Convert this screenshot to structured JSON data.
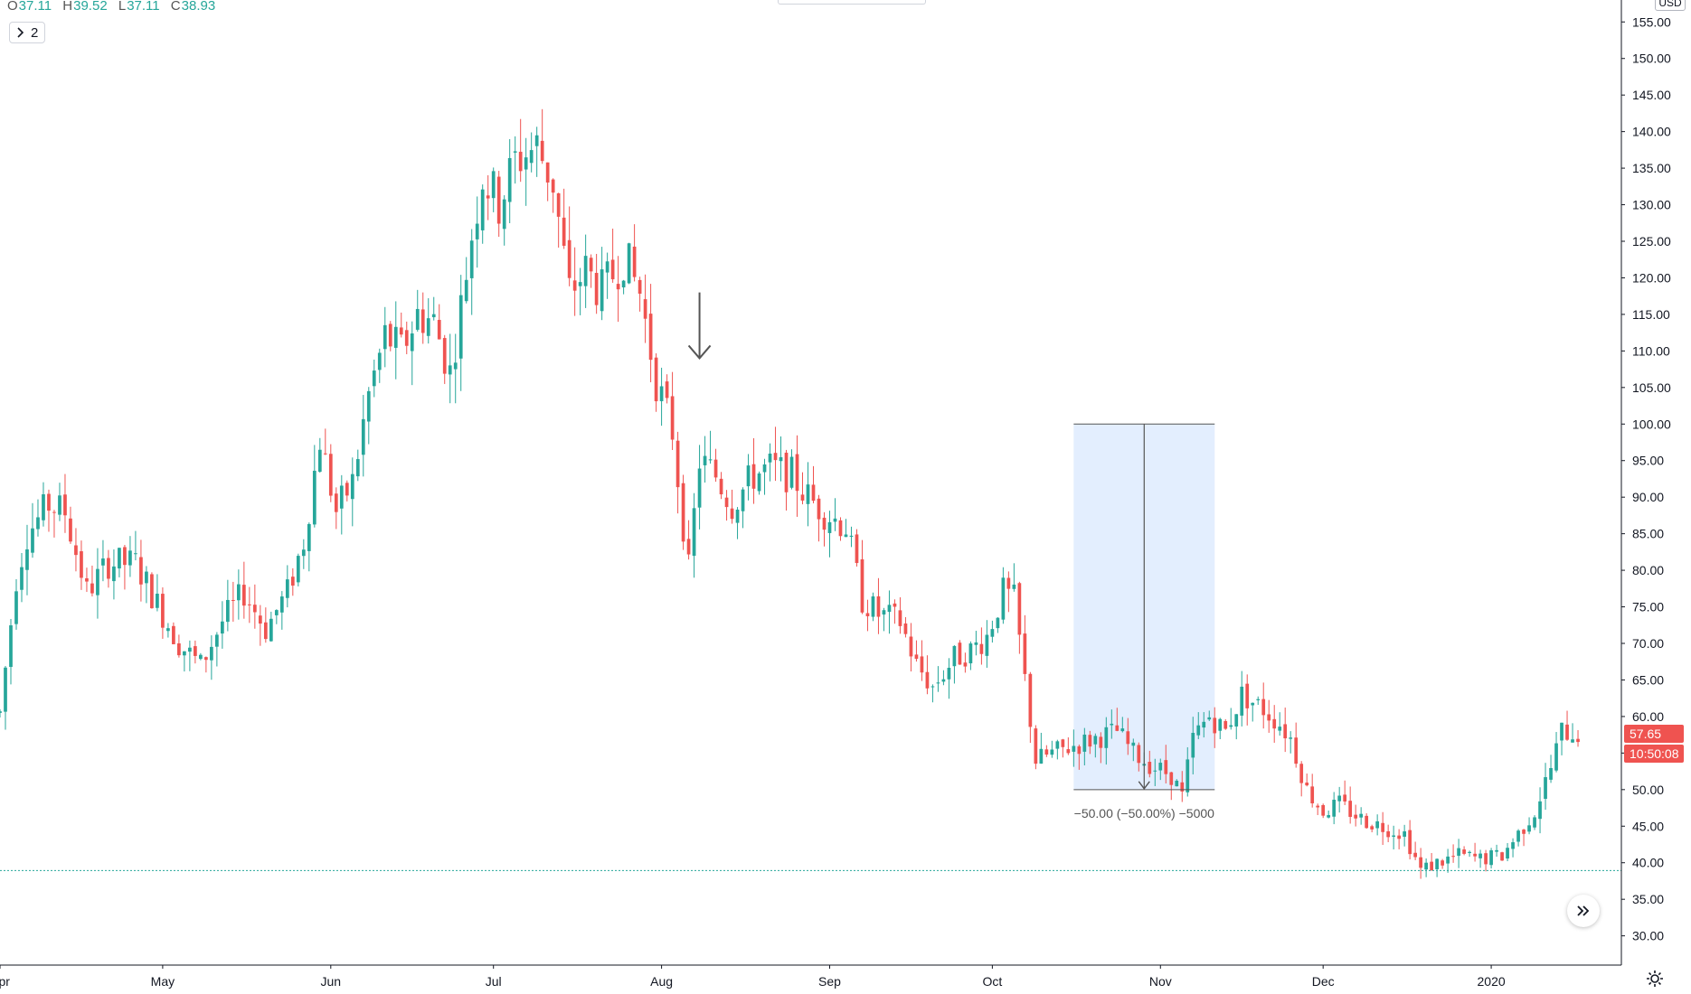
{
  "ohlc": {
    "o_label": "O",
    "o_value": "37.11",
    "h_label": "H",
    "h_value": "39.52",
    "l_label": "L",
    "l_value": "37.11",
    "c_label": "C",
    "c_value": "38.93"
  },
  "collapse_button": {
    "icon": "chevron-right-icon",
    "count": "2"
  },
  "price_axis": {
    "currency": "USD",
    "last_price": "57.65",
    "countdown": "10:50:08"
  },
  "measure": {
    "label": "−50.00 (−50.00%) −5000"
  },
  "colors": {
    "up": "#26a69a",
    "down": "#ef5350",
    "measure_fill": "#e3eefe",
    "hline": "#26a69a"
  },
  "chart_data": {
    "type": "candlestick",
    "y_ticks": [
      "30.00",
      "35.00",
      "40.00",
      "45.00",
      "50.00",
      "55.00",
      "60.00",
      "65.00",
      "70.00",
      "75.00",
      "80.00",
      "85.00",
      "90.00",
      "95.00",
      "100.00",
      "105.00",
      "110.00",
      "115.00",
      "120.00",
      "125.00",
      "130.00",
      "135.00",
      "140.00",
      "145.00",
      "150.00",
      "155.00"
    ],
    "ylim": [
      26.0,
      158.0
    ],
    "x_labels": [
      "Apr",
      "May",
      "Jun",
      "Jul",
      "Aug",
      "Sep",
      "Oct",
      "Nov",
      "Dec",
      "2020"
    ],
    "x_range": [
      "2019-04-01",
      "2020-01-25"
    ],
    "month_starts": [
      "2019-04-01",
      "2019-05-01",
      "2019-06-01",
      "2019-07-01",
      "2019-08-01",
      "2019-09-01",
      "2019-10-01",
      "2019-11-01",
      "2019-12-01",
      "2020-01-01"
    ],
    "price_path": [
      [
        "2019-04-01",
        60.5
      ],
      [
        "2019-04-04",
        79
      ],
      [
        "2019-04-06",
        85
      ],
      [
        "2019-04-10",
        89
      ],
      [
        "2019-04-13",
        88
      ],
      [
        "2019-04-17",
        77
      ],
      [
        "2019-04-21",
        81
      ],
      [
        "2019-04-26",
        81
      ],
      [
        "2019-05-01",
        74
      ],
      [
        "2019-05-04",
        70
      ],
      [
        "2019-05-08",
        67
      ],
      [
        "2019-05-12",
        73
      ],
      [
        "2019-05-16",
        77
      ],
      [
        "2019-05-20",
        72
      ],
      [
        "2019-05-24",
        77
      ],
      [
        "2019-05-27",
        84
      ],
      [
        "2019-05-30",
        98
      ],
      [
        "2019-06-02",
        88
      ],
      [
        "2019-06-05",
        92
      ],
      [
        "2019-06-08",
        104
      ],
      [
        "2019-06-11",
        112
      ],
      [
        "2019-06-14",
        110
      ],
      [
        "2019-06-17",
        115
      ],
      [
        "2019-06-20",
        114
      ],
      [
        "2019-06-23",
        107
      ],
      [
        "2019-06-25",
        116
      ],
      [
        "2019-06-27",
        126
      ],
      [
        "2019-06-29",
        134
      ],
      [
        "2019-07-02",
        130
      ],
      [
        "2019-07-05",
        136
      ],
      [
        "2019-07-09",
        138
      ],
      [
        "2019-07-12",
        133
      ],
      [
        "2019-07-15",
        118
      ],
      [
        "2019-07-18",
        121
      ],
      [
        "2019-07-21",
        118
      ],
      [
        "2019-07-25",
        123
      ],
      [
        "2019-07-28",
        118
      ],
      [
        "2019-07-31",
        106
      ],
      [
        "2019-08-03",
        99
      ],
      [
        "2019-08-06",
        80
      ],
      [
        "2019-08-08",
        95
      ],
      [
        "2019-08-11",
        93
      ],
      [
        "2019-08-14",
        89
      ],
      [
        "2019-08-18",
        93
      ],
      [
        "2019-08-21",
        94
      ],
      [
        "2019-08-25",
        93
      ],
      [
        "2019-08-28",
        90
      ],
      [
        "2019-08-31",
        88
      ],
      [
        "2019-09-04",
        86
      ],
      [
        "2019-09-07",
        76
      ],
      [
        "2019-09-10",
        74
      ],
      [
        "2019-09-14",
        73
      ],
      [
        "2019-09-17",
        67
      ],
      [
        "2019-09-20",
        64
      ],
      [
        "2019-09-24",
        68
      ],
      [
        "2019-09-27",
        69
      ],
      [
        "2019-09-30",
        71
      ],
      [
        "2019-10-03",
        77
      ],
      [
        "2019-10-05",
        76
      ],
      [
        "2019-10-07",
        65
      ],
      [
        "2019-10-09",
        54
      ],
      [
        "2019-10-12",
        55
      ],
      [
        "2019-10-16",
        56
      ],
      [
        "2019-10-20",
        57
      ],
      [
        "2019-10-24",
        58
      ],
      [
        "2019-10-27",
        55
      ],
      [
        "2019-10-31",
        53
      ],
      [
        "2019-11-03",
        52
      ],
      [
        "2019-11-05",
        49
      ],
      [
        "2019-11-07",
        57
      ],
      [
        "2019-11-10",
        60
      ],
      [
        "2019-11-13",
        58
      ],
      [
        "2019-11-16",
        63
      ],
      [
        "2019-11-20",
        61
      ],
      [
        "2019-11-23",
        59
      ],
      [
        "2019-11-25",
        57
      ],
      [
        "2019-11-28",
        50
      ],
      [
        "2019-12-01",
        47
      ],
      [
        "2019-12-04",
        48
      ],
      [
        "2019-12-08",
        46
      ],
      [
        "2019-12-12",
        45
      ],
      [
        "2019-12-16",
        44
      ],
      [
        "2019-12-19",
        39
      ],
      [
        "2019-12-22",
        40
      ],
      [
        "2019-12-26",
        41
      ],
      [
        "2019-12-30",
        40.5
      ],
      [
        "2020-01-03",
        41
      ],
      [
        "2020-01-06",
        44
      ],
      [
        "2020-01-09",
        47
      ],
      [
        "2020-01-12",
        53
      ],
      [
        "2020-01-14",
        58
      ],
      [
        "2020-01-17",
        57.65
      ]
    ],
    "hline_price": 38.93,
    "annotation_arrow": {
      "date": "2019-08-08",
      "from_price": 118,
      "to_price": 109
    },
    "measure_range": {
      "start": "2019-10-16",
      "end": "2019-11-11",
      "top": 100,
      "bottom": 50
    },
    "last_price": 57.65
  }
}
